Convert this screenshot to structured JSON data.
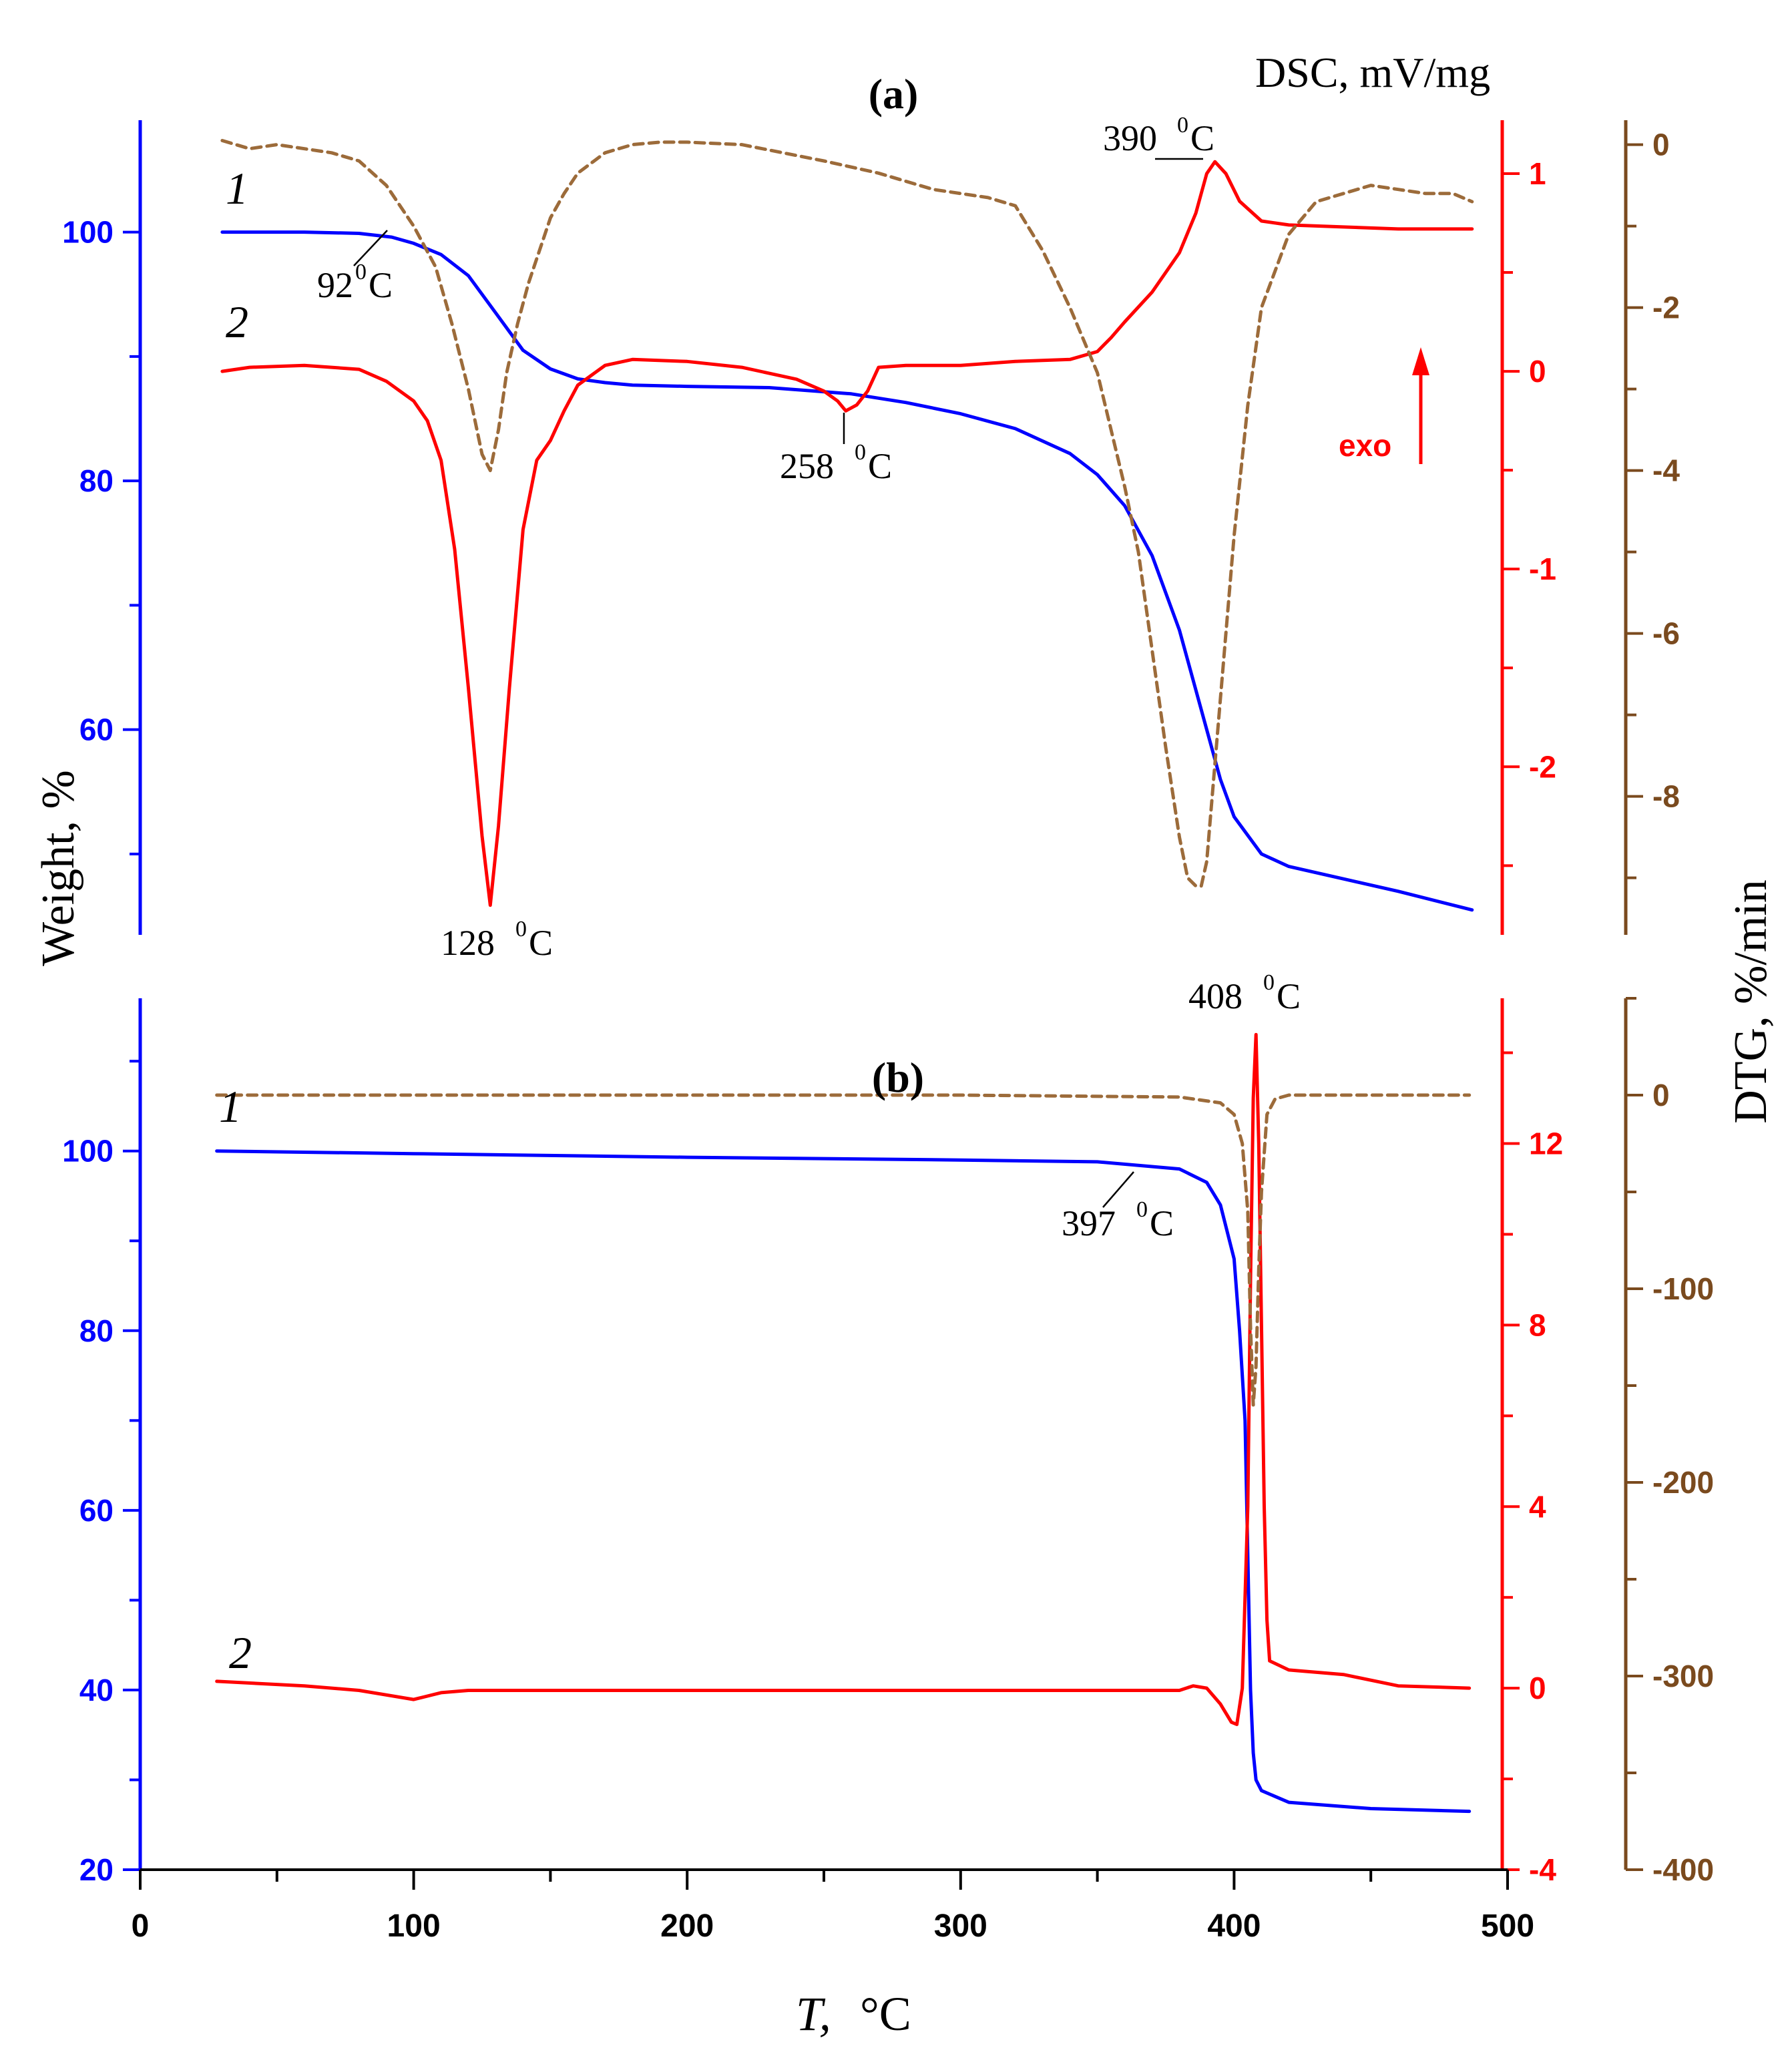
{
  "colors": {
    "weight": "#0000ff",
    "dsc": "#ff0000",
    "dtg": "#9c6b3a",
    "dtg_axis": "#7a4a1e",
    "text": "#000000"
  },
  "figure": {
    "x_axis_title_var": "T,",
    "x_axis_title_unit": "°C",
    "left_axis_title": "Weight, %",
    "right_axis_top_title": "DSC, mV/mg",
    "right_axis_title": "DTG, %/min",
    "exo_label": "exo"
  },
  "chart_data": [
    {
      "id": "a",
      "type": "line",
      "title": "(a)",
      "xlabel": "T, °C",
      "xlim": [
        0,
        500
      ],
      "x_ticks": [
        0,
        100,
        200,
        300,
        400,
        500
      ],
      "x_tick_labels": [
        "0",
        "100",
        "200",
        "300",
        "400",
        "500"
      ],
      "y_axes": {
        "weight": {
          "label": "Weight, %",
          "lim": [
            43.5,
            109
          ],
          "ticks": [
            60,
            80,
            100
          ],
          "tick_labels": [
            "60",
            "80",
            "100"
          ]
        },
        "dsc": {
          "label": "DSC, mV/mg",
          "lim": [
            -2.85,
            1.27
          ],
          "ticks": [
            -2,
            -1,
            0,
            1
          ],
          "tick_labels": [
            "-2",
            "-1",
            "0",
            "1"
          ]
        },
        "dtg": {
          "label": "DTG, %/min",
          "lim": [
            -9.7,
            0.3
          ],
          "ticks": [
            -8,
            -6,
            -4,
            -2,
            0
          ],
          "tick_labels": [
            "-8",
            "-6",
            "-4",
            "-2",
            "0"
          ]
        }
      },
      "series": [
        {
          "name": "Weight",
          "axis": "weight",
          "style": "solid",
          "label": "1",
          "x": [
            30,
            60,
            80,
            92,
            100,
            110,
            120,
            130,
            140,
            150,
            160,
            170,
            180,
            200,
            230,
            260,
            280,
            300,
            320,
            340,
            350,
            360,
            370,
            380,
            390,
            395,
            400,
            410,
            420,
            440,
            460,
            487
          ],
          "y": [
            100,
            100,
            99.9,
            99.6,
            99.1,
            98.2,
            96.5,
            93.5,
            90.5,
            89,
            88.2,
            87.9,
            87.7,
            87.6,
            87.5,
            87,
            86.3,
            85.4,
            84.2,
            82.2,
            80.5,
            78,
            74,
            68,
            60,
            56,
            53,
            50,
            49,
            48,
            47,
            45.5
          ]
        },
        {
          "name": "DSC",
          "axis": "dsc",
          "style": "solid",
          "label": "2",
          "x": [
            30,
            40,
            60,
            80,
            90,
            100,
            105,
            110,
            115,
            120,
            125,
            128,
            131,
            135,
            140,
            145,
            150,
            155,
            160,
            170,
            180,
            200,
            220,
            240,
            250,
            255,
            258,
            262,
            266,
            270,
            280,
            300,
            320,
            340,
            350,
            355,
            360,
            370,
            375,
            380,
            383,
            386,
            388,
            390,
            393,
            397,
            402,
            410,
            420,
            440,
            460,
            487
          ],
          "y": [
            0,
            0.02,
            0.03,
            0.01,
            -0.05,
            -0.15,
            -0.25,
            -0.45,
            -0.9,
            -1.6,
            -2.35,
            -2.7,
            -2.3,
            -1.6,
            -0.8,
            -0.45,
            -0.35,
            -0.2,
            -0.07,
            0.03,
            0.06,
            0.05,
            0.02,
            -0.04,
            -0.1,
            -0.15,
            -0.2,
            -0.17,
            -0.1,
            0.02,
            0.03,
            0.03,
            0.05,
            0.06,
            0.1,
            0.17,
            0.25,
            0.4,
            0.5,
            0.6,
            0.7,
            0.8,
            0.9,
            1.0,
            1.06,
            1.0,
            0.86,
            0.76,
            0.74,
            0.73,
            0.72,
            0.72
          ]
        },
        {
          "name": "DTG",
          "axis": "dtg",
          "style": "dashed",
          "x": [
            30,
            40,
            50,
            70,
            80,
            90,
            100,
            108,
            114,
            120,
            125,
            128,
            131,
            134,
            138,
            142,
            146,
            150,
            155,
            160,
            170,
            180,
            190,
            200,
            220,
            250,
            270,
            290,
            310,
            320,
            330,
            340,
            350,
            360,
            365,
            370,
            375,
            380,
            383,
            386,
            388,
            390,
            392,
            395,
            400,
            405,
            410,
            420,
            430,
            440,
            450,
            460,
            470,
            480,
            487
          ],
          "y": [
            0.05,
            -0.05,
            0,
            -0.1,
            -0.2,
            -0.5,
            -1.0,
            -1.5,
            -2.2,
            -3.0,
            -3.8,
            -4.0,
            -3.5,
            -2.8,
            -2.2,
            -1.7,
            -1.3,
            -0.9,
            -0.6,
            -0.35,
            -0.1,
            0,
            0.03,
            0.03,
            0,
            -0.2,
            -0.35,
            -0.55,
            -0.65,
            -0.75,
            -1.3,
            -2.0,
            -2.8,
            -4.2,
            -5.0,
            -6.2,
            -7.4,
            -8.5,
            -9.0,
            -9.1,
            -9.1,
            -8.8,
            -8.0,
            -6.8,
            -4.8,
            -3.2,
            -2.0,
            -1.1,
            -0.7,
            -0.6,
            -0.5,
            -0.55,
            -0.6,
            -0.6,
            -0.7
          ]
        }
      ],
      "annotations": [
        "92⁰C",
        "128⁰C",
        "258⁰C",
        "390⁰C",
        "1",
        "2",
        "exo"
      ]
    },
    {
      "id": "b",
      "type": "line",
      "title": "(b)",
      "xlabel": "T, °C",
      "xlim": [
        0,
        500
      ],
      "x_ticks": [
        0,
        100,
        200,
        300,
        400,
        500
      ],
      "x_tick_labels": [
        "0",
        "100",
        "200",
        "300",
        "400",
        "500"
      ],
      "y_axes": {
        "weight": {
          "label": "Weight, %",
          "lim": [
            20,
            117
          ],
          "ticks": [
            20,
            40,
            60,
            80,
            100
          ],
          "tick_labels": [
            "20",
            "40",
            "60",
            "80",
            "100"
          ]
        },
        "dsc": {
          "label": "DSC, mV/mg",
          "lim": [
            -4,
            15.2
          ],
          "ticks": [
            -4,
            0,
            4,
            8,
            12
          ],
          "tick_labels": [
            "-4",
            "0",
            "4",
            "8",
            "12"
          ]
        },
        "dtg": {
          "label": "DTG, %/min",
          "lim": [
            -400,
            50
          ],
          "ticks": [
            -400,
            -300,
            -200,
            -100,
            0
          ],
          "tick_labels": [
            "-400",
            "-300",
            "-200",
            "-100",
            "0"
          ]
        }
      },
      "series": [
        {
          "name": "Weight",
          "axis": "weight",
          "style": "solid",
          "label": "1",
          "x": [
            28,
            100,
            200,
            300,
            350,
            380,
            390,
            395,
            400,
            402,
            404,
            405,
            406,
            407,
            408,
            410,
            420,
            450,
            486
          ],
          "y": [
            100,
            99.7,
            99.3,
            99,
            98.8,
            98,
            96.5,
            94,
            88,
            80,
            70,
            55,
            40,
            33,
            30,
            28.8,
            27.5,
            26.8,
            26.5
          ]
        },
        {
          "name": "DSC",
          "axis": "dsc",
          "style": "solid",
          "label": "2",
          "x": [
            28,
            60,
            80,
            100,
            110,
            120,
            200,
            300,
            380,
            385,
            390,
            395,
            399,
            401,
            403,
            405,
            406,
            407,
            408,
            409,
            410,
            411,
            412,
            413,
            420,
            440,
            460,
            486
          ],
          "y": [
            0.15,
            0.05,
            -0.05,
            -0.25,
            -0.1,
            -0.05,
            -0.05,
            -0.05,
            -0.05,
            0.05,
            0,
            -0.35,
            -0.75,
            -0.8,
            0,
            4,
            9,
            13,
            14.4,
            12,
            8,
            4,
            1.5,
            0.6,
            0.4,
            0.3,
            0.05,
            0
          ]
        },
        {
          "name": "DTG",
          "axis": "dtg",
          "style": "dashed",
          "x": [
            28,
            100,
            200,
            300,
            380,
            395,
            400,
            403,
            405,
            406,
            407,
            408,
            409,
            410,
            412,
            415,
            420,
            450,
            486
          ],
          "y": [
            0,
            0,
            0,
            0,
            -1,
            -4,
            -10,
            -25,
            -60,
            -120,
            -160,
            -140,
            -90,
            -50,
            -10,
            -2,
            0,
            0,
            0
          ]
        }
      ],
      "annotations": [
        "397⁰C",
        "408⁰C",
        "1",
        "2"
      ]
    }
  ],
  "labels": {
    "a": {
      "title": "(a)",
      "curve1": "1",
      "curve2": "2",
      "t92": "92",
      "t128": "128",
      "t258": "258",
      "t390": "390",
      "exo": "exo",
      "deg_c": "C",
      "deg_sup": "0"
    },
    "b": {
      "title": "(b)",
      "curve1": "1",
      "curve2": "2",
      "t397": "397",
      "t408": "408",
      "deg_c": "C",
      "deg_sup": "0"
    }
  }
}
